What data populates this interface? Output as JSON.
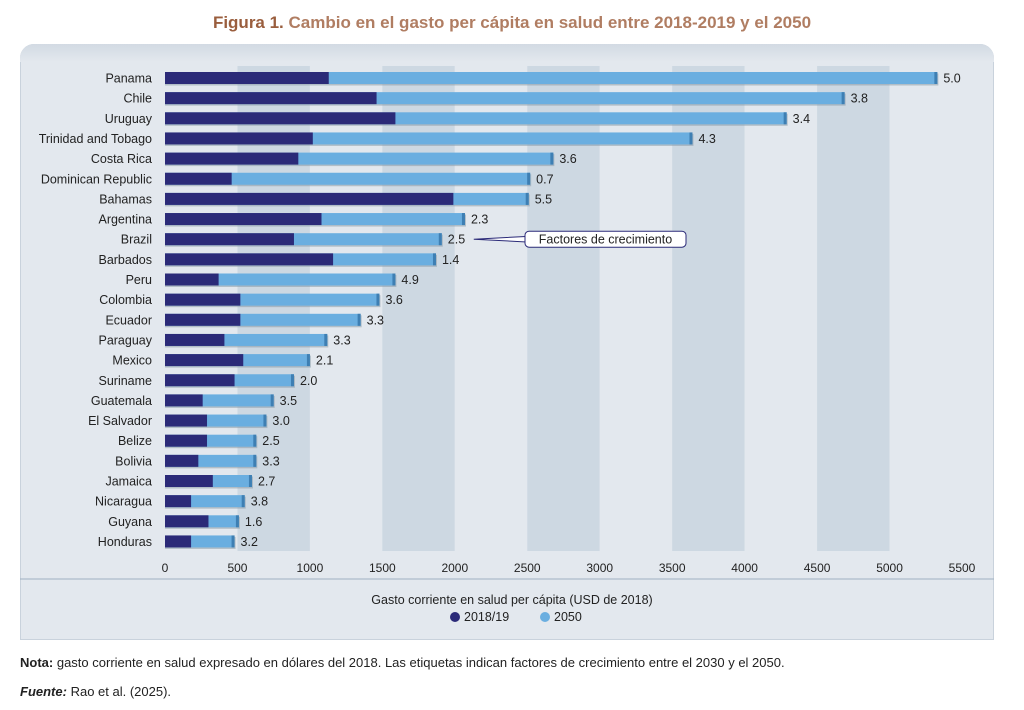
{
  "figure": {
    "label": "Figura 1.",
    "title": "Cambio en el gasto per cápita en salud entre 2018-2019 y el 2050"
  },
  "note": {
    "label": "Nota:",
    "text": "gasto corriente en salud expresado en dólares del 2018. Las etiquetas indican factores de crecimiento entre el 2030 y el 2050."
  },
  "source": {
    "label": "Fuente:",
    "text": "Rao et al. (2025)."
  },
  "chart_data": {
    "type": "bar",
    "orientation": "horizontal",
    "stacked": false,
    "categories": [
      "Panama",
      "Chile",
      "Uruguay",
      "Trinidad and Tobago",
      "Costa Rica",
      "Dominican Republic",
      "Bahamas",
      "Argentina",
      "Brazil",
      "Barbados",
      "Peru",
      "Colombia",
      "Ecuador",
      "Paraguay",
      "Mexico",
      "Suriname",
      "Guatemala",
      "El Salvador",
      "Belize",
      "Bolivia",
      "Jamaica",
      "Nicaragua",
      "Guyana",
      "Honduras"
    ],
    "series": [
      {
        "name": "2018/19",
        "color": "#2b2a78",
        "values": [
          1130,
          1460,
          1590,
          1020,
          920,
          460,
          1990,
          1080,
          890,
          1160,
          370,
          520,
          520,
          410,
          540,
          480,
          260,
          290,
          290,
          230,
          330,
          180,
          300,
          180
        ]
      },
      {
        "name": "2050",
        "color": "#6aaee0",
        "values": [
          5330,
          4690,
          4290,
          3640,
          2680,
          2520,
          2510,
          2070,
          1910,
          1870,
          1590,
          1480,
          1350,
          1120,
          1000,
          890,
          750,
          700,
          630,
          630,
          600,
          550,
          510,
          480
        ]
      }
    ],
    "data_labels": [
      "5.0",
      "3.8",
      "3.4",
      "4.3",
      "3.6",
      "0.7",
      "5.5",
      "2.3",
      "2.5",
      "1.4",
      "4.9",
      "3.6",
      "3.3",
      "3.3",
      "2.1",
      "2.0",
      "3.5",
      "3.0",
      "2.5",
      "3.3",
      "2.7",
      "3.8",
      "1.6",
      "3.2"
    ],
    "annotation": {
      "text": "Factores de crecimiento",
      "category": "Brazil"
    },
    "xlabel": "Gasto corriente en salud per cápita (USD de 2018)",
    "xlim": [
      0,
      5500
    ],
    "xticks": [
      0,
      500,
      1000,
      1500,
      2000,
      2500,
      3000,
      3500,
      4000,
      4500,
      5000,
      5500
    ],
    "legend_position": "bottom-center",
    "grid": "alternating vertical bands"
  }
}
